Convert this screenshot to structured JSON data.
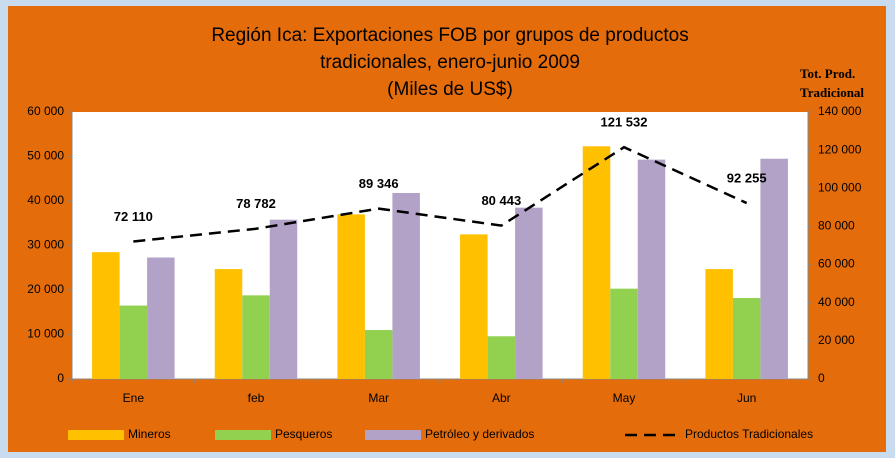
{
  "chart_data": {
    "type": "bar_line",
    "title": [
      "Región Ica: Exportaciones FOB por grupos de productos",
      "tradicionales, enero-junio 2009",
      "(Miles de US$)"
    ],
    "y2_label": [
      "Tot. Prod.",
      "Tradicional"
    ],
    "categories": [
      "Ene",
      "feb",
      "Mar",
      "Abr",
      "May",
      "Jun"
    ],
    "series": [
      {
        "name": "Mineros",
        "color": "#ffc000",
        "values": [
          28500,
          24700,
          37000,
          32500,
          52300,
          24700
        ]
      },
      {
        "name": "Pesqueros",
        "color": "#92d050",
        "values": [
          16500,
          18800,
          11000,
          9600,
          20300,
          18200
        ]
      },
      {
        "name": "Petróleo y derivados",
        "color": "#b3a2c7",
        "values": [
          27300,
          35800,
          41800,
          38500,
          49300,
          49500
        ]
      },
      {
        "name": "Productos Tradicionales",
        "color": "#000000",
        "axis": "y2",
        "values": [
          72110,
          78782,
          89346,
          80443,
          121532,
          92255
        ],
        "value_labels": [
          "72 110",
          "78 782",
          "89 346",
          "80 443",
          "121 532",
          "92 255"
        ]
      }
    ],
    "ylim": [
      0,
      60000
    ],
    "yticks": [
      {
        "value": 0,
        "label": "0"
      },
      {
        "value": 10000,
        "label": "10 000"
      },
      {
        "value": 20000,
        "label": "20 000"
      },
      {
        "value": 30000,
        "label": "30 000"
      },
      {
        "value": 40000,
        "label": "40 000"
      },
      {
        "value": 50000,
        "label": "50 000"
      },
      {
        "value": 60000,
        "label": "60 000"
      }
    ],
    "y2lim": [
      0,
      140000
    ],
    "y2ticks": [
      {
        "value": 0,
        "label": "0"
      },
      {
        "value": 20000,
        "label": "20 000"
      },
      {
        "value": 40000,
        "label": "40 000"
      },
      {
        "value": 60000,
        "label": "60 000"
      },
      {
        "value": 80000,
        "label": "80 000"
      },
      {
        "value": 100000,
        "label": "100 000"
      },
      {
        "value": 120000,
        "label": "120 000"
      },
      {
        "value": 140000,
        "label": "140 000"
      }
    ],
    "grid": false,
    "legend": "bottom"
  }
}
